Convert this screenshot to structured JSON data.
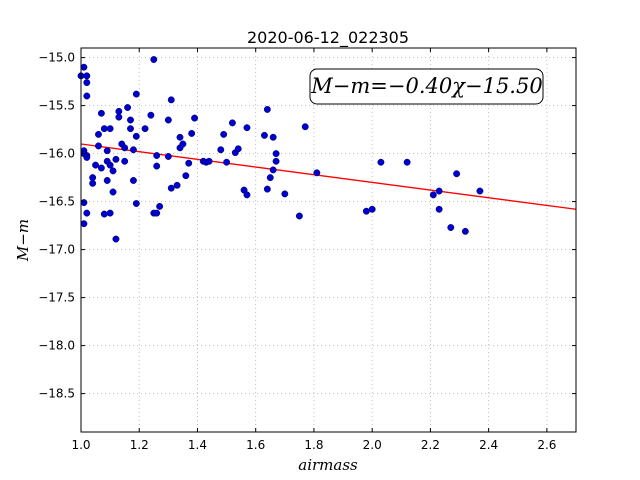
{
  "chart_data": {
    "type": "scatter",
    "title": "2020-06-12_022305",
    "xlabel": "airmass",
    "ylabel": "M−m",
    "annotation": "M−m=−0.40χ−15.50",
    "xlim": [
      1.0,
      2.7
    ],
    "ylim": [
      -18.9,
      -14.9
    ],
    "y_inverted": true,
    "grid": true,
    "x_ticks": [
      1.0,
      1.2,
      1.4,
      1.6,
      1.8,
      2.0,
      2.2,
      2.4,
      2.6
    ],
    "x_tick_labels": [
      "1.0",
      "1.2",
      "1.4",
      "1.6",
      "1.8",
      "2.0",
      "2.2",
      "2.4",
      "2.6"
    ],
    "y_ticks": [
      -15.0,
      -15.5,
      -16.0,
      -16.5,
      -17.0,
      -17.5,
      -18.0,
      -18.5
    ],
    "y_tick_labels": [
      "−15.0",
      "−15.5",
      "−16.0",
      "−16.5",
      "−17.0",
      "−17.5",
      "−18.0",
      "−18.5"
    ],
    "point_color": "#0000cc",
    "line_color": "#ff0000",
    "fit": {
      "slope": -0.4,
      "intercept": -15.5
    },
    "points": [
      [
        1.0,
        -15.19
      ],
      [
        1.01,
        -15.1
      ],
      [
        1.02,
        -15.19
      ],
      [
        1.02,
        -15.26
      ],
      [
        1.02,
        -15.4
      ],
      [
        1.01,
        -15.97
      ],
      [
        1.01,
        -16.0
      ],
      [
        1.02,
        -16.02
      ],
      [
        1.02,
        -16.04
      ],
      [
        1.04,
        -16.31
      ],
      [
        1.04,
        -16.25
      ],
      [
        1.05,
        -16.12
      ],
      [
        1.06,
        -15.8
      ],
      [
        1.07,
        -15.58
      ],
      [
        1.08,
        -15.74
      ],
      [
        1.09,
        -16.08
      ],
      [
        1.1,
        -16.12
      ],
      [
        1.1,
        -15.74
      ],
      [
        1.06,
        -15.92
      ],
      [
        1.07,
        -16.15
      ],
      [
        1.09,
        -15.97
      ],
      [
        1.09,
        -16.28
      ],
      [
        1.11,
        -16.18
      ],
      [
        1.12,
        -16.06
      ],
      [
        1.13,
        -15.62
      ],
      [
        1.13,
        -15.56
      ],
      [
        1.14,
        -15.9
      ],
      [
        1.15,
        -15.94
      ],
      [
        1.15,
        -16.08
      ],
      [
        1.16,
        -15.52
      ],
      [
        1.17,
        -15.65
      ],
      [
        1.17,
        -15.74
      ],
      [
        1.18,
        -15.96
      ],
      [
        1.18,
        -16.28
      ],
      [
        1.19,
        -15.38
      ],
      [
        1.19,
        -15.82
      ],
      [
        1.11,
        -16.4
      ],
      [
        1.1,
        -16.62
      ],
      [
        1.08,
        -16.63
      ],
      [
        1.12,
        -16.89
      ],
      [
        1.02,
        -16.62
      ],
      [
        1.01,
        -16.73
      ],
      [
        1.01,
        -16.51
      ],
      [
        1.19,
        -16.52
      ],
      [
        1.22,
        -15.74
      ],
      [
        1.24,
        -15.6
      ],
      [
        1.25,
        -15.02
      ],
      [
        1.26,
        -16.02
      ],
      [
        1.26,
        -16.13
      ],
      [
        1.25,
        -16.62
      ],
      [
        1.26,
        -16.62
      ],
      [
        1.27,
        -16.55
      ],
      [
        1.3,
        -15.65
      ],
      [
        1.3,
        -16.03
      ],
      [
        1.31,
        -15.44
      ],
      [
        1.31,
        -16.36
      ],
      [
        1.33,
        -16.33
      ],
      [
        1.34,
        -15.83
      ],
      [
        1.34,
        -15.94
      ],
      [
        1.35,
        -15.9
      ],
      [
        1.36,
        -16.23
      ],
      [
        1.37,
        -16.1
      ],
      [
        1.38,
        -15.79
      ],
      [
        1.39,
        -15.63
      ],
      [
        1.42,
        -16.08
      ],
      [
        1.43,
        -16.09
      ],
      [
        1.44,
        -16.08
      ],
      [
        1.48,
        -15.96
      ],
      [
        1.49,
        -15.8
      ],
      [
        1.5,
        -16.09
      ],
      [
        1.52,
        -15.68
      ],
      [
        1.53,
        -15.99
      ],
      [
        1.54,
        -15.95
      ],
      [
        1.56,
        -16.38
      ],
      [
        1.57,
        -16.43
      ],
      [
        1.57,
        -15.73
      ],
      [
        1.63,
        -15.81
      ],
      [
        1.64,
        -15.54
      ],
      [
        1.64,
        -16.37
      ],
      [
        1.65,
        -16.25
      ],
      [
        1.66,
        -16.17
      ],
      [
        1.66,
        -15.83
      ],
      [
        1.67,
        -16.0
      ],
      [
        1.67,
        -16.08
      ],
      [
        1.7,
        -16.42
      ],
      [
        1.75,
        -16.65
      ],
      [
        1.77,
        -15.72
      ],
      [
        1.81,
        -16.2
      ],
      [
        1.98,
        -16.6
      ],
      [
        2.0,
        -16.58
      ],
      [
        2.03,
        -16.09
      ],
      [
        2.12,
        -16.09
      ],
      [
        2.21,
        -16.43
      ],
      [
        2.23,
        -16.58
      ],
      [
        2.23,
        -16.39
      ],
      [
        2.27,
        -16.77
      ],
      [
        2.29,
        -16.21
      ],
      [
        2.32,
        -16.81
      ],
      [
        2.37,
        -16.39
      ]
    ]
  }
}
